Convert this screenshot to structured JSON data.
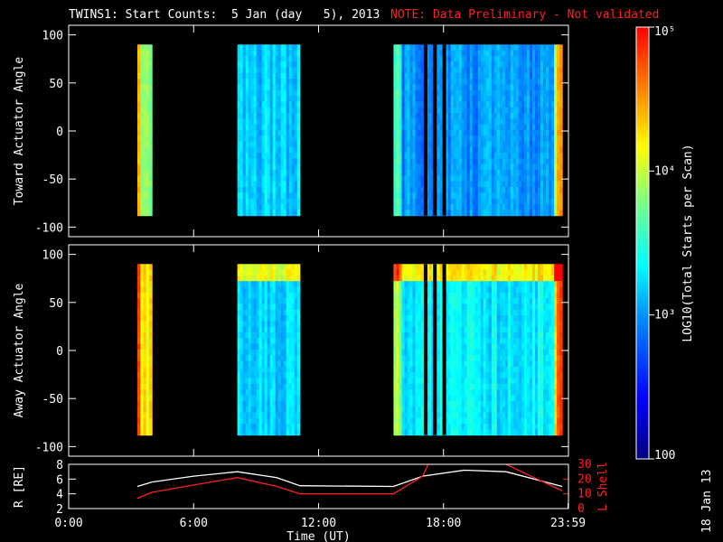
{
  "title": "TWINS1: Start Counts:  5 Jan (day   5), 2013",
  "note": "NOTE: Data Preliminary - Not validated",
  "stamp": "18 Jan 13",
  "colorbar": {
    "label": "LOG10(Total Starts per Scan)",
    "ticks": [
      {
        "value": 100,
        "label": "100"
      },
      {
        "value": 1000,
        "label": "10³"
      },
      {
        "value": 10000,
        "label": "10⁴"
      },
      {
        "value": 100000,
        "label": "10⁵"
      }
    ],
    "range": [
      100,
      100000
    ],
    "scale": "log"
  },
  "chart_data": [
    {
      "type": "heatmap",
      "ylabel": "Toward Actuator Angle",
      "ylim": [
        -110,
        110
      ],
      "yticks": [
        "100",
        "50",
        "0",
        "-50",
        "-100"
      ],
      "ytick_values": [
        100,
        50,
        0,
        -50,
        -100
      ],
      "xlim": [
        0,
        24
      ],
      "angle_range": [
        -88,
        90
      ],
      "blocks": [
        {
          "start": 3.3,
          "end": 4.0,
          "level": 3.9
        },
        {
          "start": 8.1,
          "end": 11.1,
          "level": 3.2
        },
        {
          "start": 15.6,
          "end": 23.7,
          "level": 3.0
        }
      ]
    },
    {
      "type": "heatmap",
      "ylabel": "Away Actuator Angle",
      "ylim": [
        -110,
        110
      ],
      "yticks": [
        "100",
        "50",
        "0",
        "-50",
        "-100"
      ],
      "ytick_values": [
        100,
        50,
        0,
        -50,
        -100
      ],
      "xlim": [
        0,
        24
      ],
      "angle_range": [
        -88,
        90
      ],
      "blocks": [
        {
          "start": 3.3,
          "end": 4.0,
          "level": 4.2
        },
        {
          "start": 8.1,
          "end": 11.1,
          "level": 3.2
        },
        {
          "start": 15.6,
          "end": 23.7,
          "level": 3.3
        }
      ]
    },
    {
      "type": "line",
      "ylabel": "R [RE]",
      "y2label": "L Shell",
      "ylim": [
        2,
        8
      ],
      "y2lim": [
        0,
        30
      ],
      "yticks": [
        "8",
        "6",
        "4",
        "2"
      ],
      "ytick_values": [
        8,
        6,
        4,
        2
      ],
      "y2ticks": [
        "30",
        "20",
        "10",
        "0"
      ],
      "y2tick_values": [
        30,
        20,
        10,
        0
      ],
      "xlabel": "Time (UT)",
      "xticks": [
        "0:00",
        "6:00",
        "12:00",
        "18:00",
        "23:59"
      ],
      "xtick_values": [
        0,
        6,
        12,
        18,
        23.98
      ],
      "xlim": [
        0,
        24
      ],
      "series": [
        {
          "name": "R",
          "color": "#ffffff",
          "x": [
            3.3,
            4.0,
            6.0,
            8.1,
            10.0,
            11.1,
            15.6,
            17.0,
            19.0,
            21.0,
            23.7
          ],
          "y": [
            5.0,
            5.6,
            6.4,
            7.0,
            6.2,
            5.1,
            5.0,
            6.4,
            7.2,
            7.0,
            5.0
          ]
        },
        {
          "name": "L Shell",
          "color": "#ff2020",
          "axis": "y2",
          "x": [
            3.3,
            4.0,
            6.0,
            8.1,
            10.0,
            11.1,
            15.6,
            17.0,
            17.3
          ],
          "y": [
            7,
            11,
            16,
            21,
            15,
            10,
            10,
            22,
            31
          ]
        },
        {
          "name": "L Shell",
          "color": "#ff2020",
          "axis": "y2",
          "x": [
            21.0,
            22.5,
            23.7
          ],
          "y": [
            30,
            20,
            12
          ]
        }
      ]
    }
  ]
}
